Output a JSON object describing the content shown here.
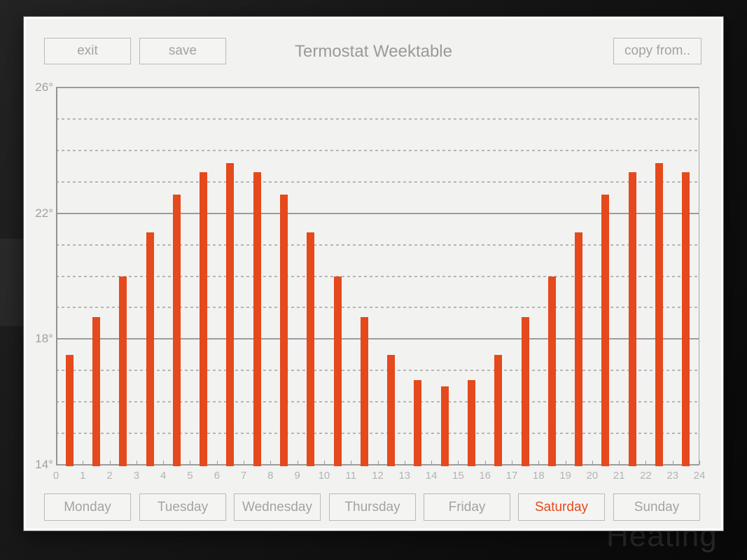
{
  "background": {
    "watermark_text": "Heating"
  },
  "window": {
    "title": "Termostat Weektable",
    "toolbar": {
      "exit_label": "exit",
      "save_label": "save",
      "copy_from_label": "copy from.."
    }
  },
  "days": [
    {
      "label": "Monday",
      "active": false
    },
    {
      "label": "Tuesday",
      "active": false
    },
    {
      "label": "Wednesday",
      "active": false
    },
    {
      "label": "Thursday",
      "active": false
    },
    {
      "label": "Friday",
      "active": false
    },
    {
      "label": "Saturday",
      "active": true
    },
    {
      "label": "Sunday",
      "active": false
    }
  ],
  "colors": {
    "bar": "#e5491c",
    "active_day_text": "#e5491c",
    "grid_solid": "#9c9c9c",
    "grid_dashed": "#b6b6b6",
    "window_bg": "#f2f2f1"
  },
  "chart_data": {
    "type": "bar",
    "title": "",
    "xlabel": "",
    "ylabel": "",
    "x": [
      0,
      1,
      2,
      3,
      4,
      5,
      6,
      7,
      8,
      9,
      10,
      11,
      12,
      13,
      14,
      15,
      16,
      17,
      18,
      19,
      20,
      21,
      22,
      23
    ],
    "values": [
      17.5,
      18.7,
      20.0,
      21.4,
      22.6,
      23.3,
      23.6,
      23.3,
      22.6,
      21.4,
      20.0,
      18.7,
      17.5,
      16.7,
      16.5,
      16.7,
      17.5,
      18.7,
      20.0,
      21.4,
      22.6,
      23.3,
      23.6,
      23.3
    ],
    "unit": "degrees Celsius",
    "ylim": [
      14,
      26
    ],
    "yticks_major": [
      14,
      18,
      22,
      26
    ],
    "ytick_labels": [
      "14°",
      "18°",
      "22°",
      "26°"
    ],
    "grid_minor_step": 1,
    "xlim": [
      0,
      24
    ],
    "xtick_labels": [
      "0",
      "1",
      "2",
      "3",
      "4",
      "5",
      "6",
      "7",
      "8",
      "9",
      "10",
      "11",
      "12",
      "13",
      "14",
      "15",
      "16",
      "17",
      "18",
      "19",
      "20",
      "21",
      "22",
      "23",
      "24"
    ],
    "xtick_minor_step": 0.5,
    "legend": "none",
    "grid": "horizontal: solid every 4 degrees, dashed every 1 degree"
  }
}
